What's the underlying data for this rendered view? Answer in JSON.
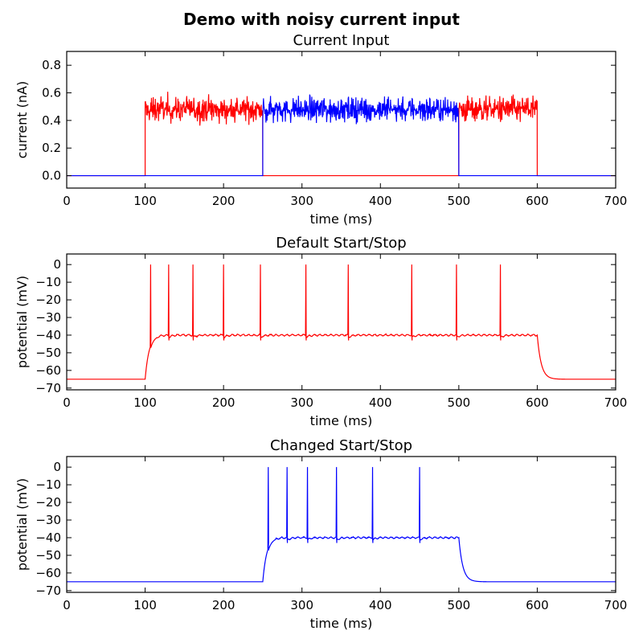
{
  "figure": {
    "title": "Demo with noisy current input"
  },
  "chart_data": [
    {
      "type": "line",
      "title": "Current Input",
      "xlabel": "time (ms)",
      "ylabel": "current (nA)",
      "xlim": [
        0,
        700
      ],
      "ylim": [
        -0.09,
        0.9
      ],
      "xticks": [
        0,
        100,
        200,
        300,
        400,
        500,
        600,
        700
      ],
      "yticks": [
        0.0,
        0.2,
        0.4,
        0.6,
        0.8
      ],
      "ytick_labels": [
        "0.0",
        "0.2",
        "0.4",
        "0.6",
        "0.8"
      ],
      "grid": false,
      "series": [
        {
          "color": "#ff0000",
          "kind": "noisy_step",
          "segments": [
            [
              100,
              250
            ],
            [
              500,
              600
            ]
          ],
          "base": 0.0,
          "level_mean": 0.48,
          "noise_range": [
            0.16,
            0.71
          ]
        },
        {
          "color": "#0000ff",
          "kind": "noisy_step",
          "segments": [
            [
              250,
              500
            ]
          ],
          "base": 0.0,
          "level_mean": 0.48,
          "noise_range": [
            0.2,
            0.78
          ]
        }
      ]
    },
    {
      "type": "line",
      "title": "Default Start/Stop",
      "xlabel": "time (ms)",
      "ylabel": "potential (mV)",
      "xlim": [
        0,
        700
      ],
      "ylim": [
        -71,
        6
      ],
      "xticks": [
        0,
        100,
        200,
        300,
        400,
        500,
        600,
        700
      ],
      "yticks": [
        0,
        -10,
        -20,
        -30,
        -40,
        -50,
        -60,
        -70
      ],
      "ytick_labels": [
        "0",
        "−10",
        "−20",
        "−30",
        "−40",
        "−50",
        "−60",
        "−70"
      ],
      "grid": false,
      "series": [
        {
          "color": "#ff0000",
          "kind": "membrane",
          "rest": -65,
          "plateau": -40,
          "on": 100,
          "off": 600,
          "spike_peak": 0,
          "spikes": [
            107,
            130,
            161,
            200,
            247,
            305,
            359,
            440,
            497,
            553
          ]
        }
      ]
    },
    {
      "type": "line",
      "title": "Changed Start/Stop",
      "xlabel": "time (ms)",
      "ylabel": "potential (mV)",
      "xlim": [
        0,
        700
      ],
      "ylim": [
        -71,
        6
      ],
      "xticks": [
        0,
        100,
        200,
        300,
        400,
        500,
        600,
        700
      ],
      "yticks": [
        0,
        -10,
        -20,
        -30,
        -40,
        -50,
        -60,
        -70
      ],
      "ytick_labels": [
        "0",
        "−10",
        "−20",
        "−30",
        "−40",
        "−50",
        "−60",
        "−70"
      ],
      "grid": false,
      "series": [
        {
          "color": "#0000ff",
          "kind": "membrane",
          "rest": -65,
          "plateau": -40,
          "on": 250,
          "off": 500,
          "spike_peak": 0,
          "spikes": [
            257,
            281,
            307,
            344,
            390,
            450
          ]
        }
      ]
    }
  ]
}
